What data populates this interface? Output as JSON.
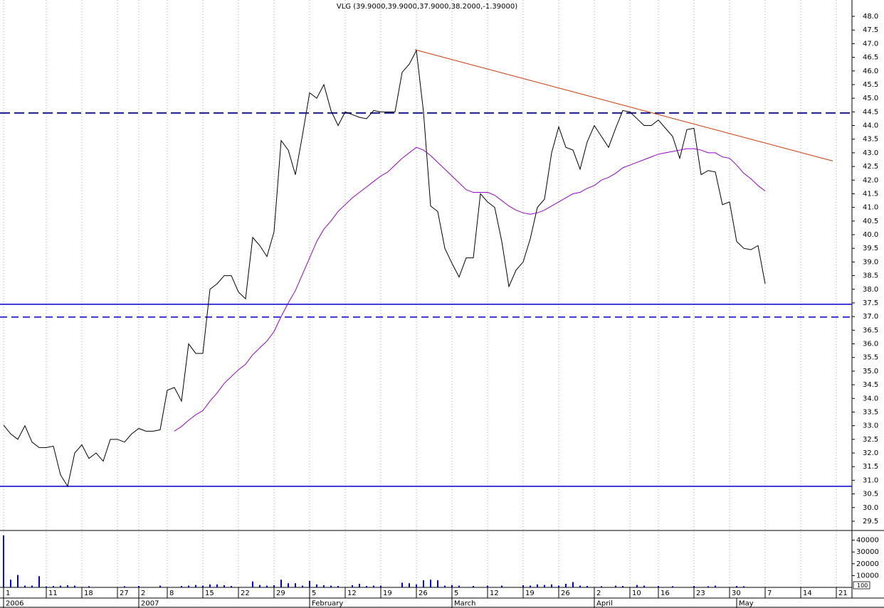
{
  "chart_data": [
    {
      "type": "line",
      "title": "VLG (39.9000,39.9000,37.9000,38.2000,-1.39000)",
      "x": [
        0,
        1,
        2,
        3,
        4,
        5,
        6,
        7,
        8,
        9,
        10,
        11,
        12,
        13,
        14,
        15,
        16,
        17,
        18,
        19,
        20,
        21,
        22,
        23,
        24,
        25,
        26,
        27,
        28,
        29,
        30,
        31,
        32,
        33,
        34,
        35,
        36,
        37,
        38,
        39,
        40,
        41,
        42,
        43,
        44,
        45,
        46,
        47,
        48,
        49,
        50,
        51,
        52,
        53,
        54,
        55,
        56,
        57,
        58,
        59,
        60,
        61,
        62,
        63,
        64,
        65,
        66,
        67,
        68,
        69,
        70,
        71,
        72,
        73,
        74,
        75,
        76,
        77,
        78,
        79,
        80,
        81,
        82,
        83,
        84,
        85,
        86,
        87,
        88,
        89,
        90,
        91,
        92,
        93,
        94,
        95,
        96,
        97,
        98,
        99,
        100,
        101,
        102,
        103,
        104,
        105,
        106,
        107
      ],
      "series": [
        {
          "color": "#000000",
          "values": [
            33.02,
            32.7,
            32.5,
            33.0,
            32.4,
            32.2,
            32.2,
            32.25,
            31.2,
            30.78,
            32.0,
            32.3,
            31.8,
            32.0,
            31.7,
            32.5,
            32.5,
            32.4,
            32.7,
            32.9,
            32.8,
            32.8,
            32.85,
            34.3,
            34.4,
            33.9,
            36.0,
            35.65,
            35.65,
            38.0,
            38.2,
            38.5,
            38.5,
            37.9,
            37.65,
            39.9,
            39.6,
            39.2,
            40.1,
            43.45,
            43.1,
            42.2,
            43.65,
            45.2,
            45.0,
            45.5,
            44.55,
            44.0,
            44.5,
            44.4,
            44.3,
            44.25,
            44.55,
            44.5,
            44.5,
            44.5,
            45.95,
            46.25,
            46.75,
            44.5,
            41.05,
            40.85,
            39.5,
            38.95,
            38.45,
            39.15,
            39.15,
            41.5,
            41.2,
            41.0,
            39.75,
            38.1,
            38.7,
            39.0,
            39.85,
            41.0,
            41.3,
            43.0,
            43.95,
            43.2,
            43.1,
            42.4,
            43.4,
            44.0,
            43.6,
            43.2,
            43.9,
            44.55,
            44.5,
            44.25,
            44.0,
            44.0,
            44.2,
            43.9,
            43.6,
            42.8,
            43.85,
            43.9,
            42.2,
            42.35,
            42.3,
            41.1,
            41.2,
            39.75,
            39.5,
            39.45,
            39.6,
            38.2
          ]
        },
        {
          "color": "#9900cc",
          "values": [
            null,
            null,
            null,
            null,
            null,
            null,
            null,
            null,
            null,
            null,
            null,
            null,
            null,
            null,
            null,
            null,
            null,
            null,
            null,
            null,
            null,
            null,
            null,
            null,
            32.8,
            32.97,
            33.2,
            33.4,
            33.55,
            33.9,
            34.2,
            34.55,
            34.8,
            35.05,
            35.25,
            35.6,
            35.85,
            36.1,
            36.45,
            37.0,
            37.5,
            37.95,
            38.55,
            39.15,
            39.75,
            40.2,
            40.5,
            40.85,
            41.1,
            41.35,
            41.55,
            41.75,
            41.95,
            42.15,
            42.3,
            42.55,
            42.8,
            43.0,
            43.2,
            43.1,
            42.9,
            42.65,
            42.4,
            42.15,
            41.9,
            41.65,
            41.55,
            41.55,
            41.55,
            41.45,
            41.25,
            41.05,
            40.9,
            40.8,
            40.75,
            40.8,
            40.9,
            41.05,
            41.2,
            41.35,
            41.5,
            41.55,
            41.7,
            41.8,
            42.0,
            42.1,
            42.25,
            42.45,
            42.55,
            42.65,
            42.75,
            42.85,
            42.95,
            43.0,
            43.05,
            43.1,
            43.15,
            43.15,
            43.1,
            43.0,
            43.0,
            42.85,
            42.8,
            42.55,
            42.25,
            42.05,
            41.8,
            41.6
          ]
        }
      ],
      "horizontal_lines": [
        {
          "value": 44.46,
          "style": "dashed",
          "color": "#1a1a8c"
        },
        {
          "value": 37.45,
          "style": "solid",
          "color": "#0000cc"
        },
        {
          "value": 36.98,
          "style": "dashed",
          "color": "#0000cc"
        },
        {
          "value": 30.78,
          "style": "solid",
          "color": "#0000cc"
        }
      ],
      "trend_line": {
        "x": [
          57.8,
          116.5
        ],
        "y": [
          46.78,
          42.7
        ],
        "color": "#cc3300"
      },
      "xlim": [
        -0.5,
        119.2
      ],
      "ylim": [
        29.16,
        48.6
      ],
      "xticks": [
        {
          "value": 0,
          "label": "1"
        },
        {
          "value": 6,
          "label": "11"
        },
        {
          "value": 11,
          "label": "18"
        },
        {
          "value": 16,
          "label": "27"
        },
        {
          "value": 19,
          "label": "2"
        },
        {
          "value": 23,
          "label": "8"
        },
        {
          "value": 28,
          "label": "15"
        },
        {
          "value": 33,
          "label": "22"
        },
        {
          "value": 38,
          "label": "29"
        },
        {
          "value": 43,
          "label": "5"
        },
        {
          "value": 48,
          "label": "12"
        },
        {
          "value": 53,
          "label": "19"
        },
        {
          "value": 58,
          "label": "26"
        },
        {
          "value": 63,
          "label": "5"
        },
        {
          "value": 68,
          "label": "12"
        },
        {
          "value": 73,
          "label": "19"
        },
        {
          "value": 78,
          "label": "26"
        },
        {
          "value": 83,
          "label": "2"
        },
        {
          "value": 88,
          "label": "10"
        },
        {
          "value": 92,
          "label": "16"
        },
        {
          "value": 97,
          "label": "23"
        },
        {
          "value": 102,
          "label": "30"
        },
        {
          "value": 107,
          "label": "7"
        },
        {
          "value": 112,
          "label": "14"
        },
        {
          "value": 117,
          "label": "21"
        }
      ],
      "month_ticks": [
        {
          "value": 0,
          "label": "2006"
        },
        {
          "value": 19,
          "label": "2007"
        },
        {
          "value": 43,
          "label": "February"
        },
        {
          "value": 63,
          "label": "March"
        },
        {
          "value": 83,
          "label": "April"
        },
        {
          "value": 103,
          "label": "May"
        }
      ],
      "yticks": [
        29.5,
        {
          "value": 30,
          "label": "30.0"
        },
        30.5,
        {
          "value": 31,
          "label": "31.0"
        },
        31.5,
        {
          "value": 32,
          "label": "32.0"
        },
        32.5,
        {
          "value": 33,
          "label": "33.0"
        },
        33.5,
        {
          "value": 34,
          "label": "34.0"
        },
        34.5,
        {
          "value": 35,
          "label": "35.0"
        },
        35.5,
        {
          "value": 36,
          "label": "36.0"
        },
        36.5,
        {
          "value": 37,
          "label": "37.0"
        },
        37.5,
        {
          "value": 38,
          "label": "38.0"
        },
        38.5,
        {
          "value": 39,
          "label": "39.0"
        },
        39.5,
        {
          "value": 40,
          "label": "40.0"
        },
        40.5,
        {
          "value": 41,
          "label": "41.0"
        },
        41.5,
        {
          "value": 42,
          "label": "42.0"
        },
        42.5,
        {
          "value": 43,
          "label": "43.0"
        },
        43.5,
        {
          "value": 44,
          "label": "44.0"
        },
        44.5,
        {
          "value": 45,
          "label": "45.0"
        },
        45.5,
        {
          "value": 46,
          "label": "46.0"
        },
        46.5,
        {
          "value": 47,
          "label": "47.0"
        },
        47.5,
        {
          "value": 48,
          "label": "48.0"
        }
      ],
      "grid": true
    },
    {
      "type": "bar",
      "color": "#0000cc",
      "values": [
        44000,
        6500,
        10500,
        1500,
        1500,
        9500,
        800,
        1200,
        1500,
        1800,
        1500,
        0,
        1000,
        0,
        0,
        0,
        0,
        1000,
        0,
        1200,
        0,
        0,
        1500,
        0,
        0,
        1200,
        1500,
        2000,
        1500,
        2500,
        2500,
        1800,
        1200,
        0,
        0,
        5000,
        2000,
        1500,
        1800,
        6500,
        3500,
        3500,
        1500,
        5500,
        2500,
        1800,
        1500,
        1200,
        0,
        1800,
        3000,
        1200,
        1500,
        1500,
        0,
        0,
        4000,
        3500,
        2500,
        6000,
        6500,
        6000,
        1500,
        2000,
        1500,
        0,
        1200,
        0,
        1500,
        0,
        1500,
        0,
        0,
        1800,
        1500,
        2500,
        2000,
        2500,
        1500,
        3000,
        4500,
        1500,
        1200,
        0,
        1000,
        0,
        1500,
        1200,
        0,
        2000,
        1500,
        0,
        1200,
        0,
        1000,
        0,
        0,
        1200,
        0,
        1000,
        1500,
        0,
        0,
        1200,
        1000,
        0,
        0,
        0
      ],
      "ylim": [
        0,
        47000
      ],
      "yticks": [
        10000,
        20000,
        30000,
        40000
      ],
      "scale_label": "100"
    }
  ]
}
